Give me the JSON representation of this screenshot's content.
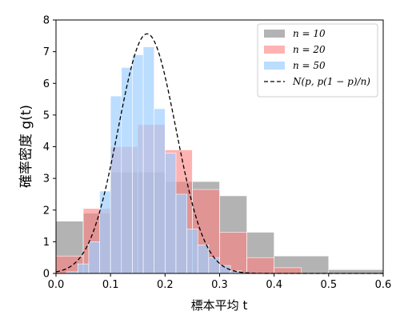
{
  "chart_data": {
    "type": "bar",
    "xlabel": "標本平均 t",
    "ylabel": "確率密度 g(t)",
    "xlim": [
      0.0,
      0.6
    ],
    "ylim": [
      0,
      8
    ],
    "xticks": [
      "0.0",
      "0.1",
      "0.2",
      "0.3",
      "0.4",
      "0.5",
      "0.6"
    ],
    "yticks": [
      "0",
      "1",
      "2",
      "3",
      "4",
      "5",
      "6",
      "7",
      "8"
    ],
    "grid": false,
    "legend_position": "top-right",
    "series": [
      {
        "name": "n = 10",
        "kind": "histogram",
        "color": "#808080",
        "opacity": 0.6,
        "edges": [
          0.0,
          0.05,
          0.1,
          0.15,
          0.2,
          0.25,
          0.3,
          0.35,
          0.4,
          0.5,
          0.6
        ],
        "values": [
          1.65,
          1.9,
          3.2,
          3.2,
          2.9,
          2.9,
          2.45,
          1.3,
          0.55,
          0.12
        ]
      },
      {
        "name": "n = 20",
        "kind": "histogram",
        "color": "#ff7f7f",
        "opacity": 0.6,
        "edges": [
          0.0,
          0.05,
          0.1,
          0.15,
          0.2,
          0.25,
          0.3,
          0.35,
          0.4,
          0.45
        ],
        "values": [
          0.55,
          2.05,
          4.0,
          4.7,
          3.9,
          2.65,
          1.3,
          0.5,
          0.18
        ]
      },
      {
        "name": "n = 50",
        "kind": "histogram",
        "color": "#9ecfff",
        "opacity": 0.7,
        "edges": [
          0.02,
          0.04,
          0.06,
          0.08,
          0.1,
          0.12,
          0.14,
          0.16,
          0.18,
          0.2,
          0.22,
          0.24,
          0.26,
          0.28,
          0.3,
          0.32,
          0.34
        ],
        "values": [
          0.05,
          0.3,
          1.0,
          2.6,
          5.6,
          6.5,
          6.9,
          7.15,
          5.2,
          3.8,
          2.5,
          1.4,
          0.9,
          0.5,
          0.25,
          0.08
        ]
      },
      {
        "name": "N(p, p(1 − p)/n)",
        "kind": "curve",
        "color": "#000000",
        "dashed": true,
        "p": 0.167,
        "n": 50
      }
    ]
  }
}
